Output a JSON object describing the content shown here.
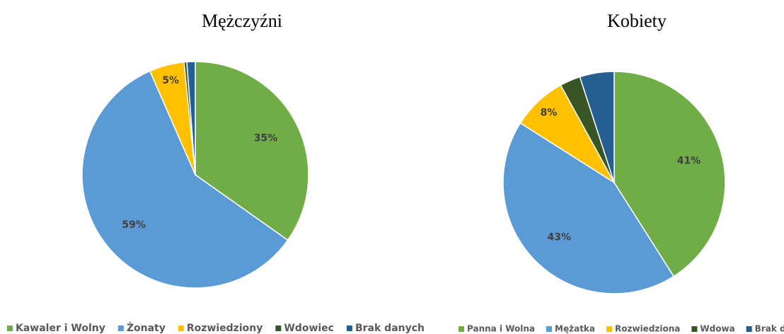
{
  "chart_data": [
    {
      "type": "pie",
      "title": "Mężczyźni",
      "categories": [
        "Kawaler i  Wolny",
        "Żonaty",
        "Rozwiedziony",
        "Wdowiec",
        "Brak danych"
      ],
      "values": [
        35,
        59,
        5,
        0.4,
        1.2
      ],
      "value_labels": [
        "35%",
        "59%",
        "5%",
        null,
        null
      ],
      "colors": [
        "#70ad47",
        "#5b9bd5",
        "#ffc000",
        "#375623",
        "#255e91"
      ]
    },
    {
      "type": "pie",
      "title": "Kobiety",
      "categories": [
        "Panna i Wolna",
        "Mężatka",
        "Rozwiedziona",
        "Wdowa",
        "Brak danych"
      ],
      "values": [
        41,
        43,
        8,
        3,
        5
      ],
      "value_labels": [
        "41%",
        "43%",
        "8%",
        null,
        null
      ],
      "colors": [
        "#70ad47",
        "#5b9bd5",
        "#ffc000",
        "#375623",
        "#255e91"
      ]
    }
  ]
}
